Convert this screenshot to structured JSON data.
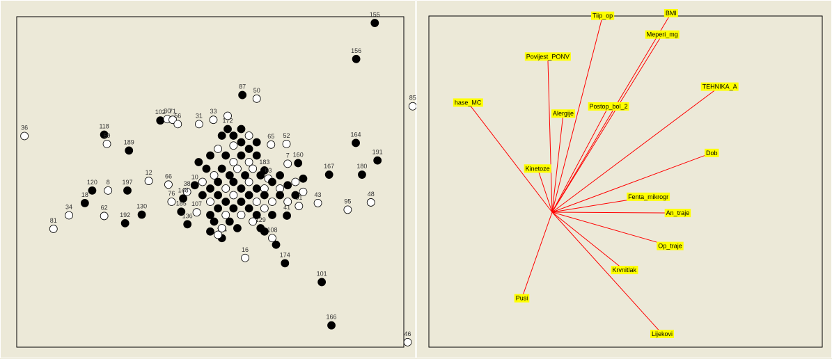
{
  "colors": {
    "background": "#ece9d8",
    "frame": "#000000",
    "vector": "#ff0000",
    "label_bg": "#ffff00",
    "point_filled": "#000000",
    "point_open": "#ffffff"
  },
  "chart_data": [
    {
      "type": "scatter",
      "title": "",
      "xlabel": "",
      "ylabel": "",
      "xlim": [
        0,
        1
      ],
      "ylim": [
        0,
        1
      ],
      "grid": false,
      "points": [
        {
          "label": "155",
          "x": 0.925,
          "y": 0.981,
          "filled": true
        },
        {
          "label": "156",
          "x": 0.877,
          "y": 0.872,
          "filled": true
        },
        {
          "label": "85",
          "x": 1.023,
          "y": 0.729,
          "filled": false
        },
        {
          "label": "36",
          "x": 0.02,
          "y": 0.639,
          "filled": false
        },
        {
          "label": "118",
          "x": 0.226,
          "y": 0.643,
          "filled": true
        },
        {
          "label": "69",
          "x": 0.233,
          "y": 0.615,
          "filled": false
        },
        {
          "label": "189",
          "x": 0.29,
          "y": 0.595,
          "filled": true
        },
        {
          "label": "102",
          "x": 0.371,
          "y": 0.686,
          "filled": true
        },
        {
          "label": "30",
          "x": 0.389,
          "y": 0.69,
          "filled": false
        },
        {
          "label": "71",
          "x": 0.403,
          "y": 0.688,
          "filled": false
        },
        {
          "label": "56",
          "x": 0.416,
          "y": 0.675,
          "filled": false
        },
        {
          "label": "31",
          "x": 0.471,
          "y": 0.675,
          "filled": false
        },
        {
          "label": "33",
          "x": 0.508,
          "y": 0.688,
          "filled": false
        },
        {
          "label": "50",
          "x": 0.62,
          "y": 0.752,
          "filled": false
        },
        {
          "label": "87",
          "x": 0.583,
          "y": 0.763,
          "filled": true
        },
        {
          "label": "65",
          "x": 0.657,
          "y": 0.613,
          "filled": false
        },
        {
          "label": "52",
          "x": 0.697,
          "y": 0.615,
          "filled": false
        },
        {
          "label": "164",
          "x": 0.876,
          "y": 0.618,
          "filled": true
        },
        {
          "label": "191",
          "x": 0.932,
          "y": 0.565,
          "filled": true
        },
        {
          "label": "160",
          "x": 0.727,
          "y": 0.557,
          "filled": true
        },
        {
          "label": "167",
          "x": 0.807,
          "y": 0.522,
          "filled": true
        },
        {
          "label": "180",
          "x": 0.892,
          "y": 0.522,
          "filled": true
        },
        {
          "label": "48",
          "x": 0.915,
          "y": 0.438,
          "filled": false
        },
        {
          "label": "95",
          "x": 0.855,
          "y": 0.416,
          "filled": false
        },
        {
          "label": "43",
          "x": 0.778,
          "y": 0.436,
          "filled": false
        },
        {
          "label": "51",
          "x": 0.729,
          "y": 0.427,
          "filled": false
        },
        {
          "label": "41",
          "x": 0.698,
          "y": 0.398,
          "filled": true
        },
        {
          "label": "12",
          "x": 0.341,
          "y": 0.503,
          "filled": false
        },
        {
          "label": "66",
          "x": 0.392,
          "y": 0.492,
          "filled": false
        },
        {
          "label": "197",
          "x": 0.286,
          "y": 0.474,
          "filled": true
        },
        {
          "label": "120",
          "x": 0.195,
          "y": 0.474,
          "filled": true
        },
        {
          "label": "8",
          "x": 0.236,
          "y": 0.474,
          "filled": false
        },
        {
          "label": "18",
          "x": 0.176,
          "y": 0.436,
          "filled": true
        },
        {
          "label": "34",
          "x": 0.135,
          "y": 0.399,
          "filled": false
        },
        {
          "label": "62",
          "x": 0.226,
          "y": 0.397,
          "filled": false
        },
        {
          "label": "81",
          "x": 0.095,
          "y": 0.358,
          "filled": false
        },
        {
          "label": "130",
          "x": 0.323,
          "y": 0.401,
          "filled": true
        },
        {
          "label": "192",
          "x": 0.28,
          "y": 0.375,
          "filled": true
        },
        {
          "label": "185",
          "x": 0.425,
          "y": 0.41,
          "filled": true
        },
        {
          "label": "136",
          "x": 0.441,
          "y": 0.372,
          "filled": true
        },
        {
          "label": "107",
          "x": 0.465,
          "y": 0.408,
          "filled": false
        },
        {
          "label": "16",
          "x": 0.59,
          "y": 0.27,
          "filled": false
        },
        {
          "label": "174",
          "x": 0.693,
          "y": 0.254,
          "filled": true
        },
        {
          "label": "101",
          "x": 0.788,
          "y": 0.197,
          "filled": true
        },
        {
          "label": "166",
          "x": 0.813,
          "y": 0.066,
          "filled": true
        },
        {
          "label": "46",
          "x": 1.01,
          "y": 0.015,
          "filled": false
        },
        {
          "label": "183",
          "x": 0.64,
          "y": 0.535,
          "filled": true
        },
        {
          "label": "7",
          "x": 0.7,
          "y": 0.555,
          "filled": false
        },
        {
          "label": "63",
          "x": 0.65,
          "y": 0.51,
          "filled": false
        },
        {
          "label": "172",
          "x": 0.545,
          "y": 0.66,
          "filled": true
        },
        {
          "label": "10",
          "x": 0.46,
          "y": 0.49,
          "filled": true
        },
        {
          "label": "38",
          "x": 0.44,
          "y": 0.47,
          "filled": false
        },
        {
          "label": "148",
          "x": 0.43,
          "y": 0.45,
          "filled": true
        },
        {
          "label": "76",
          "x": 0.4,
          "y": 0.44,
          "filled": false
        },
        {
          "label": "144",
          "x": 0.53,
          "y": 0.33,
          "filled": true
        },
        {
          "label": "108",
          "x": 0.66,
          "y": 0.33,
          "filled": false
        },
        {
          "label": "129",
          "x": 0.63,
          "y": 0.36,
          "filled": true
        },
        {
          "label": "",
          "x": 0.545,
          "y": 0.7,
          "filled": false
        },
        {
          "label": "",
          "x": 0.56,
          "y": 0.64,
          "filled": true
        },
        {
          "label": "",
          "x": 0.58,
          "y": 0.62,
          "filled": true
        },
        {
          "label": "",
          "x": 0.6,
          "y": 0.64,
          "filled": false
        },
        {
          "label": "",
          "x": 0.62,
          "y": 0.62,
          "filled": true
        },
        {
          "label": "",
          "x": 0.5,
          "y": 0.58,
          "filled": true
        },
        {
          "label": "",
          "x": 0.52,
          "y": 0.6,
          "filled": false
        },
        {
          "label": "",
          "x": 0.54,
          "y": 0.58,
          "filled": true
        },
        {
          "label": "",
          "x": 0.56,
          "y": 0.56,
          "filled": false
        },
        {
          "label": "",
          "x": 0.58,
          "y": 0.58,
          "filled": true
        },
        {
          "label": "",
          "x": 0.6,
          "y": 0.56,
          "filled": false
        },
        {
          "label": "",
          "x": 0.62,
          "y": 0.58,
          "filled": true
        },
        {
          "label": "",
          "x": 0.49,
          "y": 0.54,
          "filled": true
        },
        {
          "label": "",
          "x": 0.51,
          "y": 0.52,
          "filled": false
        },
        {
          "label": "",
          "x": 0.53,
          "y": 0.54,
          "filled": true
        },
        {
          "label": "",
          "x": 0.55,
          "y": 0.52,
          "filled": true
        },
        {
          "label": "",
          "x": 0.57,
          "y": 0.54,
          "filled": false
        },
        {
          "label": "",
          "x": 0.59,
          "y": 0.52,
          "filled": true
        },
        {
          "label": "",
          "x": 0.61,
          "y": 0.54,
          "filled": false
        },
        {
          "label": "",
          "x": 0.63,
          "y": 0.52,
          "filled": true
        },
        {
          "label": "",
          "x": 0.48,
          "y": 0.5,
          "filled": false
        },
        {
          "label": "",
          "x": 0.5,
          "y": 0.48,
          "filled": true
        },
        {
          "label": "",
          "x": 0.52,
          "y": 0.5,
          "filled": true
        },
        {
          "label": "",
          "x": 0.54,
          "y": 0.48,
          "filled": false
        },
        {
          "label": "",
          "x": 0.56,
          "y": 0.5,
          "filled": true
        },
        {
          "label": "",
          "x": 0.58,
          "y": 0.48,
          "filled": true
        },
        {
          "label": "",
          "x": 0.6,
          "y": 0.5,
          "filled": false
        },
        {
          "label": "",
          "x": 0.62,
          "y": 0.48,
          "filled": true
        },
        {
          "label": "",
          "x": 0.64,
          "y": 0.48,
          "filled": false
        },
        {
          "label": "",
          "x": 0.66,
          "y": 0.5,
          "filled": true
        },
        {
          "label": "",
          "x": 0.68,
          "y": 0.48,
          "filled": false
        },
        {
          "label": "",
          "x": 0.48,
          "y": 0.46,
          "filled": true
        },
        {
          "label": "",
          "x": 0.5,
          "y": 0.44,
          "filled": false
        },
        {
          "label": "",
          "x": 0.52,
          "y": 0.46,
          "filled": true
        },
        {
          "label": "",
          "x": 0.54,
          "y": 0.44,
          "filled": true
        },
        {
          "label": "",
          "x": 0.56,
          "y": 0.46,
          "filled": false
        },
        {
          "label": "",
          "x": 0.58,
          "y": 0.44,
          "filled": true
        },
        {
          "label": "",
          "x": 0.6,
          "y": 0.46,
          "filled": true
        },
        {
          "label": "",
          "x": 0.62,
          "y": 0.44,
          "filled": false
        },
        {
          "label": "",
          "x": 0.64,
          "y": 0.46,
          "filled": true
        },
        {
          "label": "",
          "x": 0.66,
          "y": 0.44,
          "filled": false
        },
        {
          "label": "",
          "x": 0.68,
          "y": 0.46,
          "filled": true
        },
        {
          "label": "",
          "x": 0.7,
          "y": 0.44,
          "filled": false
        },
        {
          "label": "",
          "x": 0.72,
          "y": 0.46,
          "filled": true
        },
        {
          "label": "",
          "x": 0.74,
          "y": 0.47,
          "filled": false
        },
        {
          "label": "",
          "x": 0.5,
          "y": 0.4,
          "filled": true
        },
        {
          "label": "",
          "x": 0.52,
          "y": 0.42,
          "filled": true
        },
        {
          "label": "",
          "x": 0.54,
          "y": 0.4,
          "filled": false
        },
        {
          "label": "",
          "x": 0.56,
          "y": 0.42,
          "filled": true
        },
        {
          "label": "",
          "x": 0.58,
          "y": 0.4,
          "filled": false
        },
        {
          "label": "",
          "x": 0.6,
          "y": 0.42,
          "filled": true
        },
        {
          "label": "",
          "x": 0.62,
          "y": 0.4,
          "filled": true
        },
        {
          "label": "",
          "x": 0.64,
          "y": 0.42,
          "filled": false
        },
        {
          "label": "",
          "x": 0.66,
          "y": 0.4,
          "filled": true
        },
        {
          "label": "",
          "x": 0.51,
          "y": 0.38,
          "filled": true
        },
        {
          "label": "",
          "x": 0.53,
          "y": 0.36,
          "filled": false
        },
        {
          "label": "",
          "x": 0.55,
          "y": 0.38,
          "filled": true
        },
        {
          "label": "",
          "x": 0.57,
          "y": 0.36,
          "filled": true
        },
        {
          "label": "",
          "x": 0.61,
          "y": 0.38,
          "filled": false
        },
        {
          "label": "",
          "x": 0.64,
          "y": 0.35,
          "filled": true
        },
        {
          "label": "",
          "x": 0.67,
          "y": 0.31,
          "filled": true
        },
        {
          "label": "",
          "x": 0.5,
          "y": 0.35,
          "filled": true
        },
        {
          "label": "",
          "x": 0.52,
          "y": 0.34,
          "filled": false
        },
        {
          "label": "",
          "x": 0.56,
          "y": 0.61,
          "filled": false
        },
        {
          "label": "",
          "x": 0.58,
          "y": 0.66,
          "filled": true
        },
        {
          "label": "",
          "x": 0.6,
          "y": 0.6,
          "filled": true
        },
        {
          "label": "",
          "x": 0.53,
          "y": 0.64,
          "filled": true
        },
        {
          "label": "",
          "x": 0.47,
          "y": 0.56,
          "filled": true
        },
        {
          "label": "",
          "x": 0.68,
          "y": 0.52,
          "filled": true
        },
        {
          "label": "",
          "x": 0.72,
          "y": 0.5,
          "filled": false
        },
        {
          "label": "",
          "x": 0.74,
          "y": 0.51,
          "filled": true
        },
        {
          "label": "",
          "x": 0.7,
          "y": 0.49,
          "filled": true
        }
      ]
    },
    {
      "type": "biplot-loadings",
      "title": "",
      "origin": [
        0,
        0
      ],
      "xlim": [
        -1,
        1
      ],
      "ylim": [
        -1,
        1
      ],
      "vectors": [
        {
          "name": "Tiip_op",
          "x": 0.317,
          "y": 1.233
        },
        {
          "name": "BMI",
          "x": 0.746,
          "y": 1.249
        },
        {
          "name": "Meperi_mg",
          "x": 0.691,
          "y": 1.115
        },
        {
          "name": "Povijest_PONV",
          "x": -0.027,
          "y": 0.977
        },
        {
          "name": "hase_MC",
          "x": -0.528,
          "y": 0.688
        },
        {
          "name": "TEHNIKA_A",
          "x": 1.051,
          "y": 0.788
        },
        {
          "name": "Postop_bol_2",
          "x": 0.354,
          "y": 0.664
        },
        {
          "name": "Alergije",
          "x": 0.07,
          "y": 0.619
        },
        {
          "name": "Kinetoze",
          "x": -0.091,
          "y": 0.274
        },
        {
          "name": "Dob",
          "x": 1.001,
          "y": 0.372
        },
        {
          "name": "Fenta_mikrogr",
          "x": 0.603,
          "y": 0.097
        },
        {
          "name": "An_traje",
          "x": 0.788,
          "y": -0.005
        },
        {
          "name": "Op_traje",
          "x": 0.74,
          "y": -0.212
        },
        {
          "name": "Krvnitlak",
          "x": 0.453,
          "y": -0.363
        },
        {
          "name": "Pusi",
          "x": -0.19,
          "y": -0.54
        },
        {
          "name": "Lijekovi",
          "x": 0.69,
          "y": -0.764
        }
      ]
    }
  ]
}
